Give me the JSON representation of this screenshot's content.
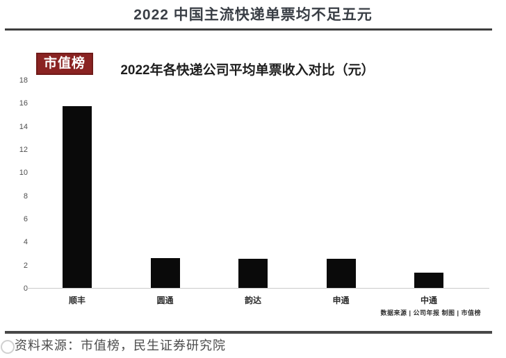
{
  "header": {
    "title": "2022 中国主流快递单票均不足五元"
  },
  "chart": {
    "logo": "市值榜",
    "title": "2022年各快递公司平均单票收入对比（元）",
    "source_note": "数据来源 | 公司年报 制图 | 市值榜"
  },
  "chart_data": {
    "type": "bar",
    "title": "2022年各快递公司平均单票收入对比（元）",
    "categories": [
      "顺丰",
      "圆通",
      "韵达",
      "申通",
      "中通"
    ],
    "values": [
      15.7,
      2.6,
      2.5,
      2.5,
      1.3
    ],
    "xlabel": "",
    "ylabel": "",
    "ylim": [
      0,
      18
    ],
    "yticks": [
      0,
      2,
      4,
      6,
      8,
      10,
      12,
      14,
      16,
      18
    ],
    "grid": false,
    "legend_position": "none",
    "bar_color": "#0a0a0a"
  },
  "footer": {
    "caption": "资料来源：市值榜，民生证券研究院"
  },
  "colors": {
    "logo_background": "#8a2322",
    "divider": "#3d3d3d",
    "bar": "#0a0a0a",
    "title_text": "#3a3f46"
  }
}
